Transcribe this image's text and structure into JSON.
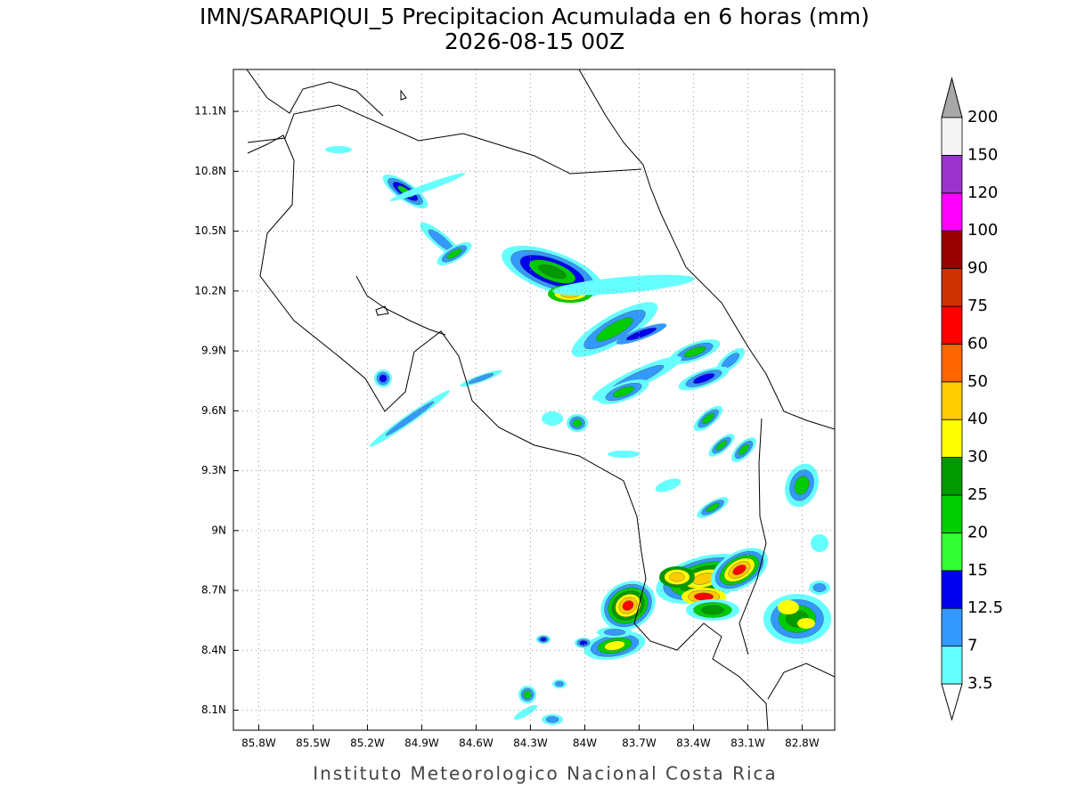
{
  "map": {
    "title": "IMN/SARAPIQUI_5 Precipitacion Acumulada en 6 horas (mm)",
    "subtitle": "2026-08-15 00Z",
    "footer": "Instituto Meteorologico Nacional Costa Rica",
    "lonlim": [
      -85.94,
      -82.62
    ],
    "latlim": [
      8.0,
      11.31
    ],
    "lon_ticks": [
      {
        "value": -85.8,
        "label": "85.8W"
      },
      {
        "value": -85.5,
        "label": "85.5W"
      },
      {
        "value": -85.2,
        "label": "85.2W"
      },
      {
        "value": -84.9,
        "label": "84.9W"
      },
      {
        "value": -84.6,
        "label": "84.6W"
      },
      {
        "value": -84.3,
        "label": "84.3W"
      },
      {
        "value": -84.0,
        "label": "84W"
      },
      {
        "value": -83.7,
        "label": "83.7W"
      },
      {
        "value": -83.4,
        "label": "83.4W"
      },
      {
        "value": -83.1,
        "label": "83.1W"
      },
      {
        "value": -82.8,
        "label": "82.8W"
      }
    ],
    "lat_ticks": [
      {
        "value": 8.1,
        "label": "8.1N"
      },
      {
        "value": 8.4,
        "label": "8.4N"
      },
      {
        "value": 8.7,
        "label": "8.7N"
      },
      {
        "value": 9.0,
        "label": "9N"
      },
      {
        "value": 9.3,
        "label": "9.3N"
      },
      {
        "value": 9.6,
        "label": "9.6N"
      },
      {
        "value": 9.9,
        "label": "9.9N"
      },
      {
        "value": 10.2,
        "label": "10.2N"
      },
      {
        "value": 10.5,
        "label": "10.5N"
      },
      {
        "value": 10.8,
        "label": "10.8N"
      },
      {
        "value": 11.1,
        "label": "11.1N"
      }
    ],
    "colorbar": {
      "levels": [
        3.5,
        7,
        12.5,
        15,
        20,
        25,
        30,
        40,
        50,
        60,
        75,
        90,
        100,
        120,
        150,
        200
      ],
      "colors": [
        "#66ffff",
        "#3399ff",
        "#0000ee",
        "#33ff33",
        "#00cc00",
        "#009900",
        "#ffff00",
        "#ffcc00",
        "#ff6600",
        "#ff0000",
        "#cc3300",
        "#990000",
        "#ff00ff",
        "#9933cc",
        "#f4f4f4"
      ],
      "under_color": "#ffffff",
      "over_color": "#a8a8a8"
    }
  }
}
